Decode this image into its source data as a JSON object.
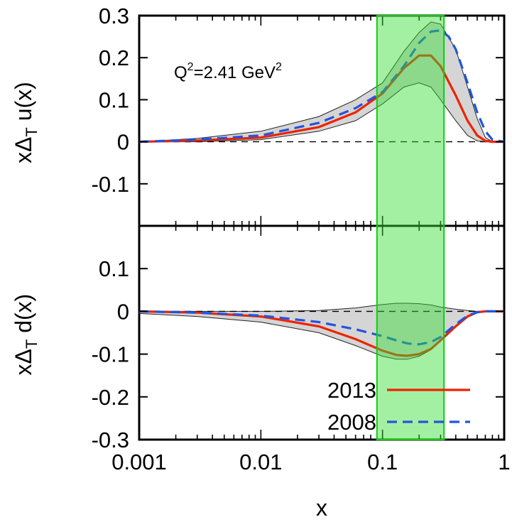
{
  "chart_data": [
    {
      "type": "line",
      "panel": "top",
      "ylabel_main": "xΔ",
      "ylabel_sub": "T",
      "ylabel_rest": " u(x)",
      "xscale": "log",
      "xlim": [
        0.001,
        1
      ],
      "ylim": [
        -0.2,
        0.3
      ],
      "yticks": [
        "0.3",
        "0.2",
        "0.1",
        "0",
        "-0.1"
      ],
      "ytick_values": [
        0.3,
        0.2,
        0.1,
        0,
        -0.1
      ],
      "annotation": {
        "text_main": "Q",
        "sup1": "2",
        "text_mid": "=2.41 GeV",
        "sup2": "2"
      },
      "series": [
        {
          "name": "2013",
          "color": "#ee2200",
          "style": "solid",
          "x": [
            0.001,
            0.003,
            0.01,
            0.03,
            0.06,
            0.1,
            0.15,
            0.2,
            0.25,
            0.3,
            0.4,
            0.5,
            0.6,
            0.7,
            0.8,
            1
          ],
          "y": [
            0,
            0.003,
            0.01,
            0.035,
            0.07,
            0.115,
            0.175,
            0.205,
            0.205,
            0.18,
            0.11,
            0.05,
            0.015,
            0.002,
            0,
            0
          ]
        },
        {
          "name": "2008",
          "color": "#2255dd",
          "style": "dashed",
          "x": [
            0.001,
            0.003,
            0.01,
            0.03,
            0.06,
            0.1,
            0.15,
            0.2,
            0.25,
            0.3,
            0.35,
            0.4,
            0.5,
            0.6,
            0.7,
            0.8,
            1
          ],
          "y": [
            0,
            0.005,
            0.015,
            0.045,
            0.08,
            0.118,
            0.18,
            0.235,
            0.262,
            0.265,
            0.25,
            0.22,
            0.14,
            0.07,
            0.025,
            0.005,
            0
          ]
        }
      ],
      "band": {
        "x": [
          0.001,
          0.003,
          0.01,
          0.03,
          0.06,
          0.1,
          0.15,
          0.2,
          0.25,
          0.3,
          0.4,
          0.5,
          0.6,
          0.7,
          0.8,
          1
        ],
        "lower": [
          0,
          0.0,
          0.005,
          0.025,
          0.05,
          0.09,
          0.13,
          0.14,
          0.13,
          0.1,
          0.05,
          0.015,
          0.002,
          0,
          0,
          0
        ],
        "upper": [
          0,
          0.008,
          0.025,
          0.06,
          0.1,
          0.14,
          0.215,
          0.26,
          0.285,
          0.28,
          0.22,
          0.13,
          0.055,
          0.01,
          0,
          0
        ]
      }
    },
    {
      "type": "line",
      "panel": "bottom",
      "ylabel_main": "xΔ",
      "ylabel_sub": "T",
      "ylabel_rest": " d(x)",
      "xlabel": "x",
      "xscale": "log",
      "xlim": [
        0.001,
        1
      ],
      "ylim": [
        -0.3,
        0.2
      ],
      "xticks": [
        "0.001",
        "0.01",
        "0.1",
        "1"
      ],
      "xtick_values": [
        0.001,
        0.01,
        0.1,
        1
      ],
      "yticks": [
        "0.1",
        "0",
        "-0.1",
        "-0.2",
        "-0.3"
      ],
      "ytick_values": [
        0.1,
        0,
        -0.1,
        -0.2,
        -0.3
      ],
      "series": [
        {
          "name": "2013",
          "color": "#ee2200",
          "style": "solid",
          "x": [
            0.001,
            0.003,
            0.01,
            0.03,
            0.06,
            0.1,
            0.13,
            0.16,
            0.2,
            0.25,
            0.3,
            0.4,
            0.5,
            0.6,
            0.7,
            1
          ],
          "y": [
            0,
            -0.003,
            -0.012,
            -0.035,
            -0.065,
            -0.092,
            -0.102,
            -0.104,
            -0.1,
            -0.088,
            -0.068,
            -0.035,
            -0.012,
            -0.002,
            0,
            0
          ]
        },
        {
          "name": "2008",
          "color": "#2255dd",
          "style": "dashed",
          "x": [
            0.001,
            0.003,
            0.01,
            0.03,
            0.06,
            0.1,
            0.13,
            0.16,
            0.2,
            0.25,
            0.3,
            0.4,
            0.5,
            0.6,
            0.7,
            1
          ],
          "y": [
            0,
            -0.003,
            -0.01,
            -0.025,
            -0.042,
            -0.058,
            -0.068,
            -0.075,
            -0.077,
            -0.072,
            -0.06,
            -0.03,
            -0.01,
            -0.002,
            0,
            0
          ]
        }
      ],
      "band": {
        "x": [
          0.001,
          0.003,
          0.01,
          0.03,
          0.06,
          0.1,
          0.13,
          0.16,
          0.2,
          0.25,
          0.3,
          0.4,
          0.5,
          0.6,
          0.7,
          1
        ],
        "lower": [
          -0.005,
          -0.012,
          -0.025,
          -0.05,
          -0.08,
          -0.105,
          -0.112,
          -0.112,
          -0.105,
          -0.09,
          -0.07,
          -0.035,
          -0.012,
          -0.002,
          0,
          0
        ],
        "upper": [
          0,
          0.0,
          0.0,
          0.002,
          0.008,
          0.016,
          0.019,
          0.019,
          0.018,
          0.015,
          0.01,
          0.005,
          0.002,
          0,
          0,
          0
        ]
      }
    }
  ],
  "highlight_region": {
    "x_range": [
      0.09,
      0.32
    ],
    "fill_color": "#33dd33",
    "edge_color": "#11cc11"
  },
  "legend": [
    {
      "label": "2013",
      "color": "#ee2200",
      "style": "solid"
    },
    {
      "label": "2008",
      "color": "#2255dd",
      "style": "dashed"
    }
  ],
  "band_fill_color": "#888888"
}
